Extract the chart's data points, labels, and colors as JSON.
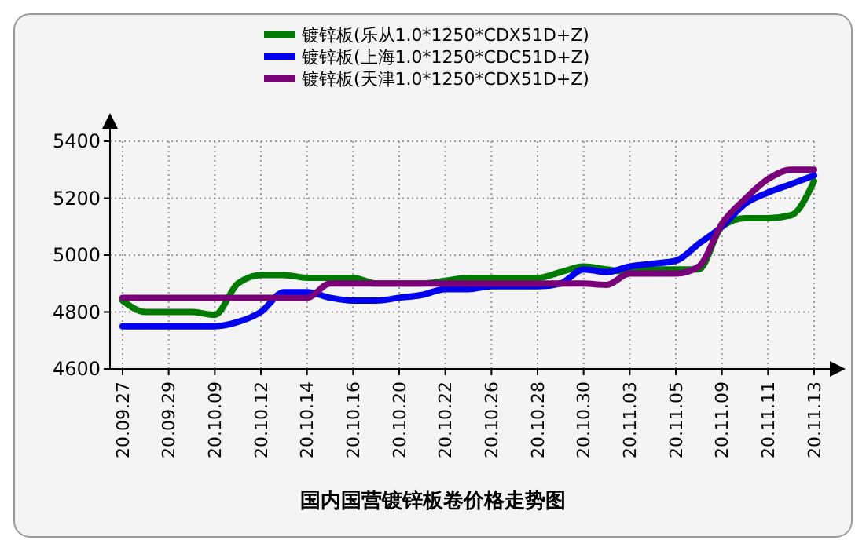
{
  "chart_data": {
    "type": "line",
    "title": "国内国营镀锌板卷价格走势图",
    "categories": [
      "20.09.27",
      null,
      "20.09.29",
      null,
      "20.10.09",
      null,
      "20.10.12",
      null,
      "20.10.14",
      null,
      "20.10.16",
      null,
      "20.10.20",
      null,
      "20.10.22",
      null,
      "20.10.26",
      null,
      "20.10.28",
      null,
      "20.10.30",
      null,
      "20.11.03",
      null,
      "20.11.05",
      null,
      "20.11.09",
      null,
      "20.11.11",
      null,
      "20.11.13"
    ],
    "series": [
      {
        "name": "镀锌板(乐从1.0*1250*CDX51D+Z)",
        "color": "#007a00",
        "values": [
          4840,
          4800,
          4800,
          4800,
          4790,
          4900,
          4930,
          4930,
          4920,
          4920,
          4920,
          4900,
          4900,
          4900,
          4910,
          4920,
          4920,
          4920,
          4920,
          4940,
          4960,
          4950,
          4940,
          4950,
          4950,
          4950,
          5100,
          5130,
          5130,
          5140,
          5260
        ]
      },
      {
        "name": "镀锌板(上海1.0*1250*CDC51D+Z)",
        "color": "#0000ee",
        "values": [
          4750,
          4750,
          4750,
          4750,
          4750,
          4765,
          4800,
          4870,
          4870,
          4850,
          4840,
          4840,
          4850,
          4860,
          4880,
          4880,
          4890,
          4890,
          4890,
          4900,
          4950,
          4940,
          4960,
          4970,
          4980,
          5040,
          5100,
          5180,
          5220,
          5250,
          5280
        ]
      },
      {
        "name": "镀锌板(天津1.0*1250*CDX51D+Z)",
        "color": "#7a007a",
        "values": [
          4850,
          4850,
          4850,
          4850,
          4850,
          4850,
          4850,
          4850,
          4850,
          4900,
          4900,
          4900,
          4900,
          4900,
          4900,
          4900,
          4900,
          4900,
          4900,
          4900,
          4900,
          4895,
          4935,
          4935,
          4935,
          4960,
          5110,
          5197,
          5267,
          5300,
          5300
        ]
      }
    ],
    "ylim": [
      4600,
      5400
    ],
    "yticks": [
      4600,
      4800,
      5000,
      5200,
      5400
    ],
    "grid": true,
    "legend": "top",
    "marker": "none",
    "line_style": "solid"
  }
}
